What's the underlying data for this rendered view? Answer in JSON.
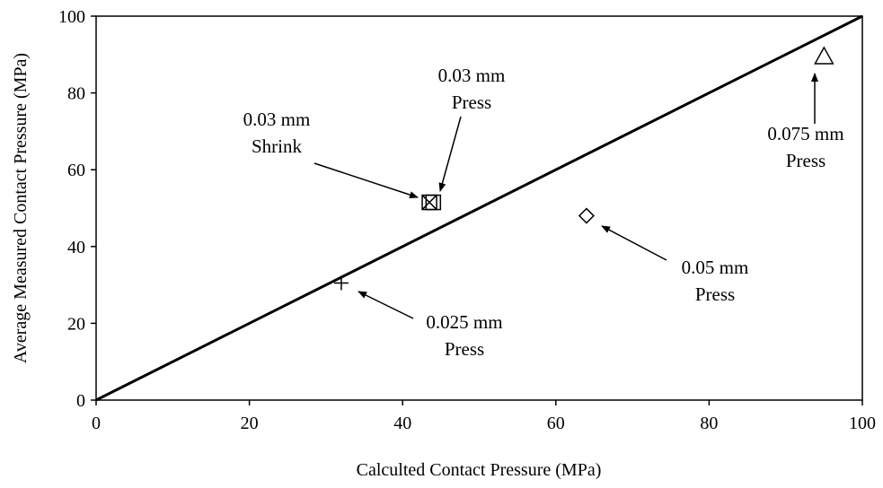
{
  "chart_data": {
    "type": "scatter",
    "title": "",
    "xlabel": "Calculted Contact Pressure (MPa)",
    "ylabel": "Average Measured Contact Pressure (MPa)",
    "xlim": [
      0,
      100
    ],
    "ylim": [
      0,
      100
    ],
    "xticks": [
      "0",
      "20",
      "40",
      "60",
      "80",
      "100"
    ],
    "yticks": [
      "0",
      "20",
      "40",
      "60",
      "80",
      "100"
    ],
    "grid": false,
    "legend": "none",
    "reference_line": {
      "x": [
        0,
        100
      ],
      "y": [
        0,
        100
      ]
    },
    "points": [
      {
        "marker": "plus",
        "x": 32,
        "y": 30.5
      },
      {
        "marker": "boxed-x",
        "x": 43.5,
        "y": 51.5
      },
      {
        "marker": "square",
        "x": 44,
        "y": 51.5
      },
      {
        "marker": "diamond",
        "x": 64,
        "y": 48
      },
      {
        "marker": "triangle",
        "x": 95,
        "y": 89.5
      }
    ],
    "annotations": [
      {
        "lines": [
          "0.025 mm",
          "Press"
        ]
      },
      {
        "lines": [
          "0.03 mm",
          "Shrink"
        ]
      },
      {
        "lines": [
          "0.03 mm",
          "Press"
        ]
      },
      {
        "lines": [
          "0.05 mm",
          "Press"
        ]
      },
      {
        "lines": [
          "0.075 mm",
          "Press"
        ]
      }
    ]
  }
}
